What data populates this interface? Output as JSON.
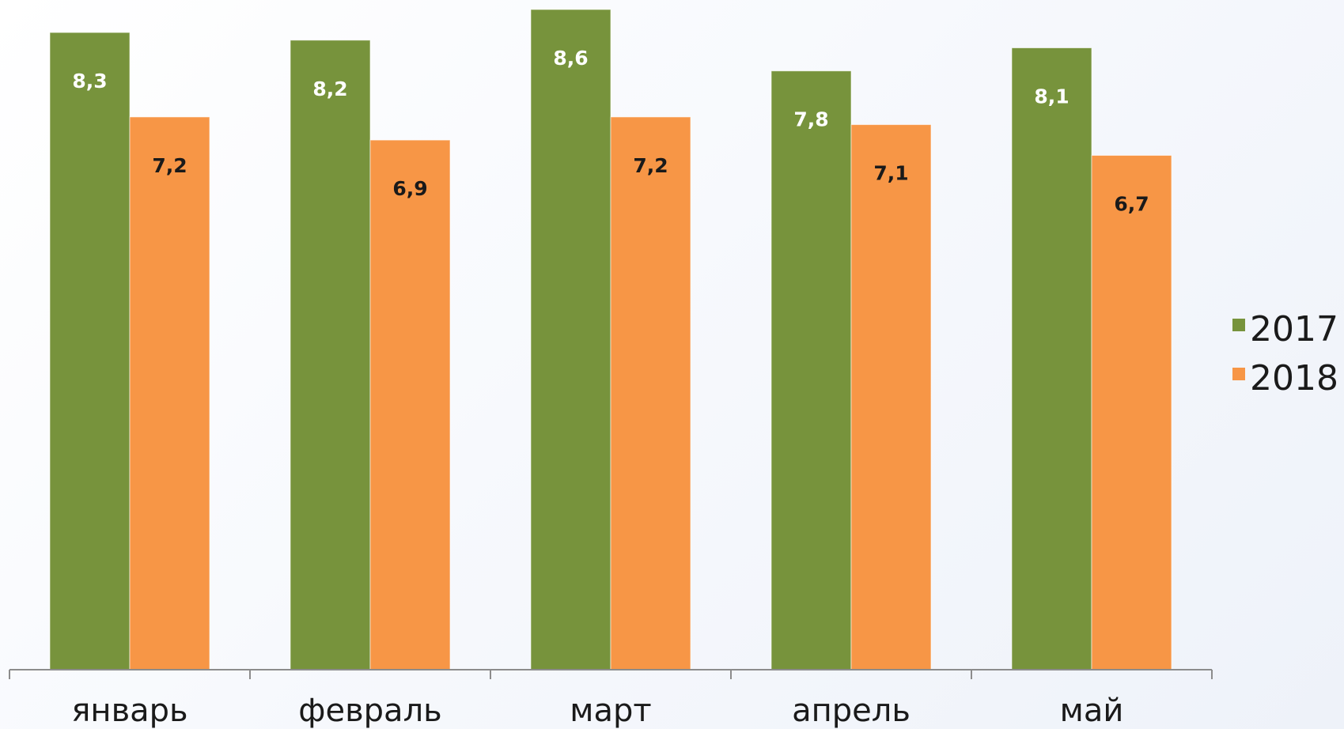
{
  "chart_data": {
    "type": "bar",
    "categories": [
      "январь",
      "февраль",
      "март",
      "апрель",
      "май"
    ],
    "series": [
      {
        "name": "2017",
        "values": [
          8.3,
          8.2,
          8.6,
          7.8,
          8.1
        ],
        "labels": [
          "8,3",
          "8,2",
          "8,6",
          "7,8",
          "8,1"
        ],
        "color": "#77933c",
        "label_color": "#ffffff"
      },
      {
        "name": "2018",
        "values": [
          7.2,
          6.9,
          7.2,
          7.1,
          6.7
        ],
        "labels": [
          "7,2",
          "6,9",
          "7,2",
          "7,1",
          "6,7"
        ],
        "color": "#f79646",
        "label_color": "#1a1a1a"
      }
    ],
    "ylim": [
      0,
      8.6
    ],
    "grid": false,
    "legend_position": "right",
    "title": "",
    "xlabel": "",
    "ylabel": ""
  }
}
